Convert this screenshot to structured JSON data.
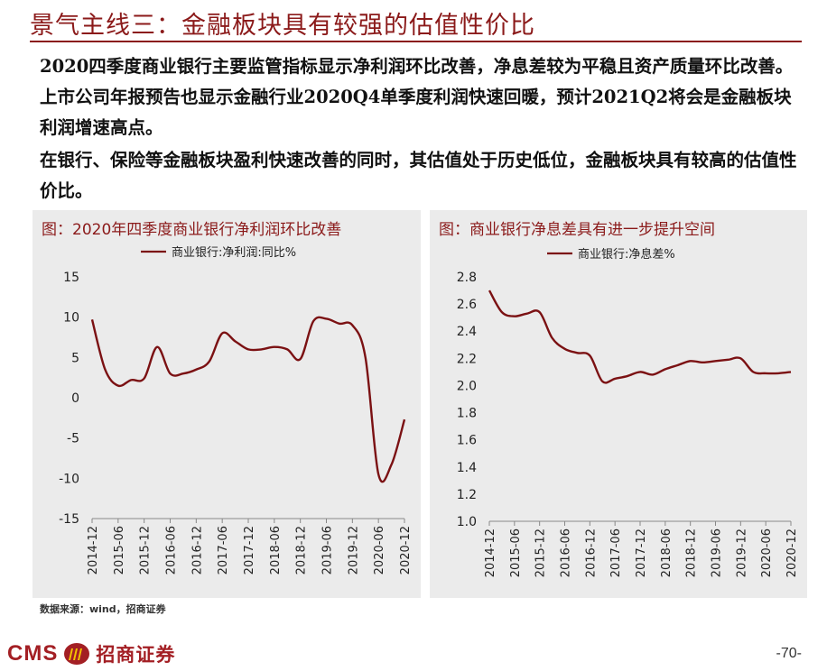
{
  "slide": {
    "title": "景气主线三：金融板块具有较强的估值性价比",
    "paragraphs": [
      "2020四季度商业银行主要监管指标显示净利润环比改善，净息差较为平稳且资产质量环比改善。上市公司年报预告也显示金融行业2020Q4单季度利润快速回暖，预计2021Q2将会是金融板块利润增速高点。",
      "在银行、保险等金融板块盈利快速改善的同时，其估值处于历史低位，金融板块具有较高的估值性价比。"
    ],
    "source": "数据来源：wind，招商证券",
    "page_number": "-70-",
    "logo": {
      "latin": "CMS",
      "chinese": "招商证券"
    }
  },
  "colors": {
    "accent": "#8B1A1A",
    "line": "#7B1113",
    "panel_bg": "#ebebeb"
  },
  "chart_data": [
    {
      "type": "line",
      "title": "图：2020年四季度商业银行净利润环比改善",
      "series": [
        {
          "name": "商业银行:净利润:同比%",
          "values": [
            [
              "2014-12",
              9.7
            ],
            [
              "2015-03",
              3.5
            ],
            [
              "2015-06",
              1.5
            ],
            [
              "2015-09",
              2.2
            ],
            [
              "2015-12",
              2.4
            ],
            [
              "2016-03",
              6.3
            ],
            [
              "2016-06",
              3.0
            ],
            [
              "2016-09",
              3.0
            ],
            [
              "2016-12",
              3.5
            ],
            [
              "2017-03",
              4.5
            ],
            [
              "2017-06",
              8.0
            ],
            [
              "2017-09",
              7.0
            ],
            [
              "2017-12",
              6.0
            ],
            [
              "2018-03",
              6.0
            ],
            [
              "2018-06",
              6.3
            ],
            [
              "2018-09",
              6.0
            ],
            [
              "2018-12",
              4.8
            ],
            [
              "2019-03",
              9.5
            ],
            [
              "2019-06",
              9.8
            ],
            [
              "2019-09",
              9.2
            ],
            [
              "2019-12",
              9.0
            ],
            [
              "2020-03",
              5.0
            ],
            [
              "2020-06",
              -9.5
            ],
            [
              "2020-09",
              -8.3
            ],
            [
              "2020-12",
              -2.7
            ]
          ]
        }
      ],
      "x_tick_labels": [
        "2014-12",
        "2015-06",
        "2015-12",
        "2016-06",
        "2016-12",
        "2017-06",
        "2017-12",
        "2018-06",
        "2018-12",
        "2019-06",
        "2019-12",
        "2020-06",
        "2020-12"
      ],
      "y_tick_labels": [
        "15",
        "10",
        "5",
        "0",
        "-5",
        "-10",
        "-15"
      ],
      "ylim": [
        -15,
        15
      ],
      "legend": "top"
    },
    {
      "type": "line",
      "title": "图：商业银行净息差具有进一步提升空间",
      "series": [
        {
          "name": "商业银行:净息差%",
          "values": [
            [
              "2014-12",
              2.7
            ],
            [
              "2015-03",
              2.54
            ],
            [
              "2015-06",
              2.51
            ],
            [
              "2015-09",
              2.53
            ],
            [
              "2015-12",
              2.54
            ],
            [
              "2016-03",
              2.35
            ],
            [
              "2016-06",
              2.27
            ],
            [
              "2016-09",
              2.24
            ],
            [
              "2016-12",
              2.22
            ],
            [
              "2017-03",
              2.03
            ],
            [
              "2017-06",
              2.05
            ],
            [
              "2017-09",
              2.07
            ],
            [
              "2017-12",
              2.1
            ],
            [
              "2018-03",
              2.08
            ],
            [
              "2018-06",
              2.12
            ],
            [
              "2018-09",
              2.15
            ],
            [
              "2018-12",
              2.18
            ],
            [
              "2019-03",
              2.17
            ],
            [
              "2019-06",
              2.18
            ],
            [
              "2019-09",
              2.19
            ],
            [
              "2019-12",
              2.2
            ],
            [
              "2020-03",
              2.1
            ],
            [
              "2020-06",
              2.09
            ],
            [
              "2020-09",
              2.09
            ],
            [
              "2020-12",
              2.1
            ]
          ]
        }
      ],
      "x_tick_labels": [
        "2014-12",
        "2015-06",
        "2015-12",
        "2016-06",
        "2016-12",
        "2017-06",
        "2017-12",
        "2018-06",
        "2018-12",
        "2019-06",
        "2019-12",
        "2020-06",
        "2020-12"
      ],
      "y_tick_labels": [
        "2.8",
        "2.6",
        "2.4",
        "2.2",
        "2.0",
        "1.8",
        "1.6",
        "1.4",
        "1.2",
        "1.0"
      ],
      "ylim": [
        1.0,
        2.8
      ],
      "legend": "top"
    }
  ]
}
